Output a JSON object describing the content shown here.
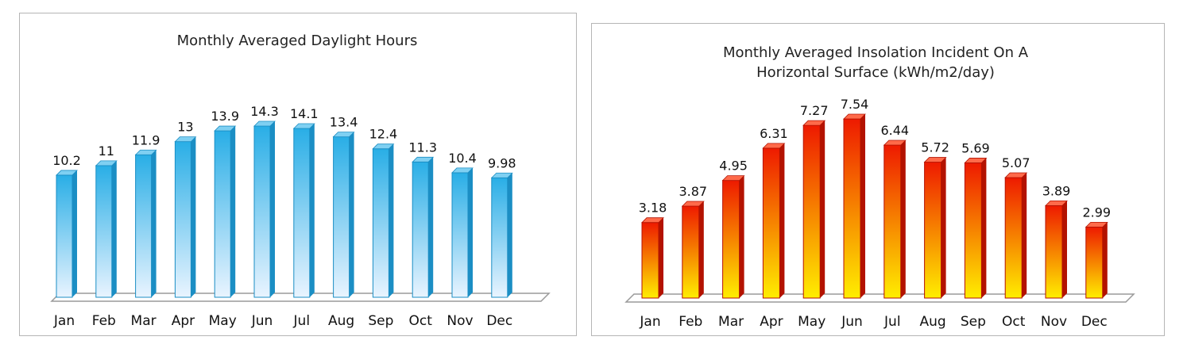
{
  "chart_data": [
    {
      "type": "bar",
      "title": "Monthly Averaged Daylight Hours",
      "categories": [
        "Jan",
        "Feb",
        "Mar",
        "Apr",
        "May",
        "Jun",
        "Jul",
        "Aug",
        "Sep",
        "Oct",
        "Nov",
        "Dec"
      ],
      "values": [
        10.2,
        11,
        11.9,
        13,
        13.9,
        14.3,
        14.1,
        13.4,
        12.4,
        11.3,
        10.4,
        9.98
      ],
      "value_labels": [
        "10.2",
        "11",
        "11.9",
        "13",
        "13.9",
        "14.3",
        "14.1",
        "13.4",
        "12.4",
        "11.3",
        "10.4",
        "9.98"
      ],
      "ylim": [
        0,
        14.3
      ],
      "xlabel": "",
      "ylabel": "",
      "grid": false,
      "colors": {
        "bar_top": "#29aee6",
        "bar_bottom": "#e9f4ff",
        "bar_side": "#1b8ec4",
        "bar_cap": "#7fd0f2",
        "floor": "#ffffff",
        "floor_edge": "#9a9a9a"
      }
    },
    {
      "type": "bar",
      "title": "Monthly Averaged Insolation Incident On A Horizontal Surface (kWh/m2/day)",
      "title_lines": [
        "Monthly Averaged Insolation Incident On A",
        "Horizontal Surface (kWh/m2/day)"
      ],
      "categories": [
        "Jan",
        "Feb",
        "Mar",
        "Apr",
        "May",
        "Jun",
        "Jul",
        "Aug",
        "Sep",
        "Oct",
        "Nov",
        "Dec"
      ],
      "values": [
        3.18,
        3.87,
        4.95,
        6.31,
        7.27,
        7.54,
        6.44,
        5.72,
        5.69,
        5.07,
        3.89,
        2.99
      ],
      "value_labels": [
        "3.18",
        "3.87",
        "4.95",
        "6.31",
        "7.27",
        "7.54",
        "6.44",
        "5.72",
        "5.69",
        "5.07",
        "3.89",
        "2.99"
      ],
      "ylim": [
        0,
        7.54
      ],
      "xlabel": "",
      "ylabel": "",
      "grid": false,
      "colors": {
        "bar_top": "#ee1a00",
        "bar_bottom": "#ffee00",
        "bar_side": "#b31200",
        "bar_cap": "#ff6a4a",
        "floor": "#ffffff",
        "floor_edge": "#9a9a9a"
      }
    }
  ]
}
